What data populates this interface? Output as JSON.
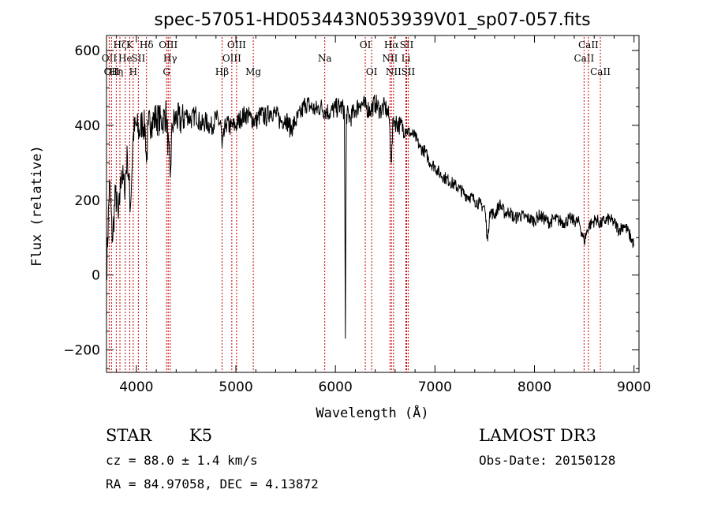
{
  "chart_data": {
    "type": "line",
    "title": "spec-57051-HD053443N053939V01_sp07-057.fits",
    "xlabel": "Wavelength (Å)",
    "ylabel": "Flux (relative)",
    "xlim": [
      3700,
      9050
    ],
    "ylim": [
      -260,
      640
    ],
    "x_ticks": [
      4000,
      5000,
      6000,
      7000,
      8000,
      9000
    ],
    "y_ticks": [
      -200,
      0,
      200,
      400,
      600
    ],
    "grid": false,
    "series": [
      {
        "x": [
          3700,
          3730,
          3760,
          3790,
          3820,
          3850,
          3880,
          3910,
          3940,
          3970,
          4000,
          4030,
          4060,
          4090,
          4102,
          4120,
          4150,
          4200,
          4250,
          4300,
          4340,
          4360,
          4400,
          4450,
          4500,
          4550,
          4600,
          4650,
          4700,
          4750,
          4800,
          4850,
          4861,
          4900,
          4950,
          5000,
          5050,
          5100,
          5150,
          5200,
          5250,
          5300,
          5350,
          5400,
          5450,
          5500,
          5550,
          5600,
          5650,
          5700,
          5750,
          5800,
          5850,
          5890,
          5950,
          6000,
          6050,
          6090,
          6100,
          6110,
          6150,
          6200,
          6250,
          6300,
          6350,
          6400,
          6450,
          6500,
          6540,
          6563,
          6580,
          6600,
          6650,
          6700,
          6750,
          6800,
          6850,
          6900,
          6950,
          7000,
          7050,
          7100,
          7150,
          7200,
          7250,
          7300,
          7350,
          7400,
          7450,
          7500,
          7530,
          7550,
          7600,
          7650,
          7700,
          7750,
          7800,
          7850,
          7900,
          7950,
          8000,
          8050,
          8100,
          8150,
          8200,
          8250,
          8300,
          8350,
          8400,
          8450,
          8498,
          8542,
          8580,
          8620,
          8662,
          8700,
          8750,
          8800,
          8850,
          8900,
          8950,
          9000
        ],
        "values": [
          0,
          250,
          90,
          220,
          150,
          280,
          230,
          320,
          180,
          380,
          400,
          380,
          410,
          390,
          300,
          400,
          410,
          420,
          410,
          430,
          260,
          400,
          420,
          410,
          430,
          415,
          430,
          400,
          410,
          395,
          420,
          400,
          340,
          405,
          395,
          400,
          420,
          430,
          420,
          410,
          430,
          420,
          440,
          430,
          410,
          420,
          390,
          410,
          430,
          460,
          450,
          440,
          450,
          440,
          435,
          445,
          450,
          440,
          -170,
          430,
          420,
          440,
          460,
          450,
          440,
          460,
          440,
          450,
          420,
          300,
          420,
          410,
          400,
          390,
          380,
          370,
          340,
          330,
          300,
          290,
          270,
          260,
          250,
          240,
          230,
          215,
          210,
          200,
          190,
          180,
          90,
          170,
          160,
          190,
          165,
          170,
          150,
          160,
          155,
          150,
          145,
          160,
          150,
          140,
          150,
          145,
          140,
          150,
          145,
          140,
          90,
          130,
          140,
          150,
          135,
          145,
          150,
          140,
          120,
          135,
          110,
          80
        ]
      }
    ],
    "lines": [
      {
        "w": 3727,
        "label": "OII",
        "row": 2
      },
      {
        "w": 3750,
        "label": "OII",
        "row": 3
      },
      {
        "w": 3798,
        "label": "Hη",
        "row": 3
      },
      {
        "w": 3835,
        "label": "Hζ",
        "row": 1
      },
      {
        "w": 3889,
        "label": "He",
        "row": 2
      },
      {
        "w": 3934,
        "label": "K",
        "row": 1
      },
      {
        "w": 3968,
        "label": "H",
        "row": 3
      },
      {
        "w": 4020,
        "label": "SII",
        "row": 2
      },
      {
        "w": 4102,
        "label": "Hδ",
        "row": 1
      },
      {
        "w": 4304,
        "label": "G",
        "row": 3
      },
      {
        "w": 4320,
        "label": "OIII",
        "row": 1
      },
      {
        "w": 4340,
        "label": "Hγ",
        "row": 2
      },
      {
        "w": 4861,
        "label": "Hβ",
        "row": 3
      },
      {
        "w": 4959,
        "label": "OIII",
        "row": 2
      },
      {
        "w": 5007,
        "label": "OIII",
        "row": 1
      },
      {
        "w": 5175,
        "label": "Mg",
        "row": 3
      },
      {
        "w": 5893,
        "label": "Na",
        "row": 2
      },
      {
        "w": 6300,
        "label": "OI",
        "row": 1
      },
      {
        "w": 6364,
        "label": "OI",
        "row": 3
      },
      {
        "w": 6548,
        "label": "NII",
        "row": 2
      },
      {
        "w": 6563,
        "label": "Hα",
        "row": 1
      },
      {
        "w": 6584,
        "label": "NII",
        "row": 3
      },
      {
        "w": 6708,
        "label": "Li",
        "row": 2
      },
      {
        "w": 6716,
        "label": "SII",
        "row": 1
      },
      {
        "w": 6731,
        "label": "SII",
        "row": 3
      },
      {
        "w": 8498,
        "label": "CaII",
        "row": 2
      },
      {
        "w": 8542,
        "label": "CaII",
        "row": 1
      },
      {
        "w": 8662,
        "label": "CaII",
        "row": 3
      }
    ]
  },
  "info": {
    "class_label": "STAR",
    "subclass": "K5",
    "survey": "LAMOST DR3",
    "cz": "cz = 88.0 ± 1.4 km/s",
    "obs_date": "Obs-Date: 20150128",
    "coords": "RA =  84.97058, DEC =    4.13872"
  }
}
